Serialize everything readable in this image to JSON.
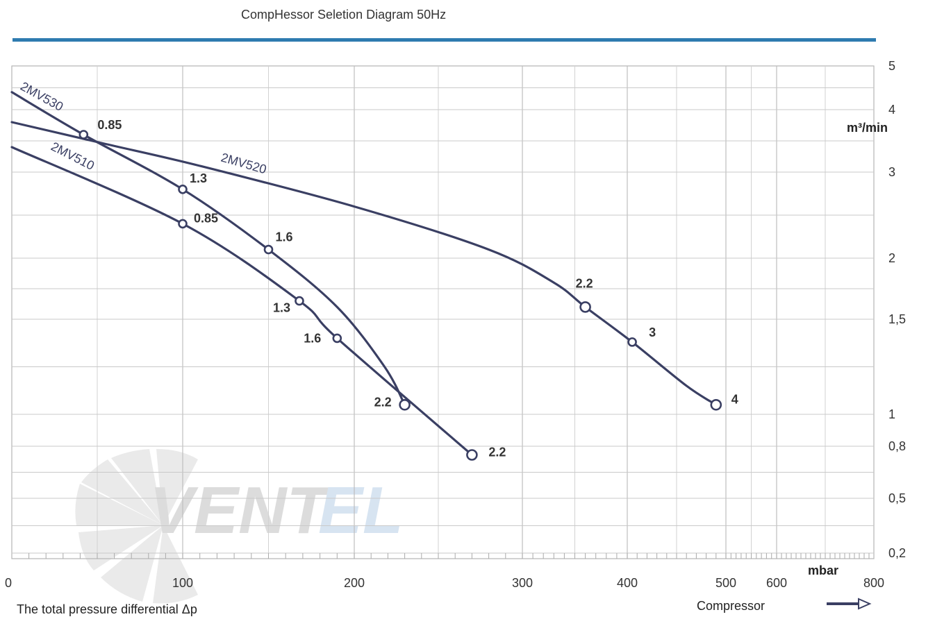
{
  "chart_data": {
    "type": "line",
    "title": "CompHessor Seletion Diagram 50Hz",
    "xlabel": "The total pressure differential Δp",
    "x_unit": "mbar",
    "y_unit": "m³/min",
    "footer_label": "Compressor",
    "xlim": [
      0,
      800
    ],
    "ylim": [
      0.15,
      5
    ],
    "x_tick_labels": [
      "0",
      "100",
      "200",
      "300",
      "400",
      "500",
      "600",
      "800"
    ],
    "x_tick_values": [
      0,
      100,
      200,
      300,
      400,
      500,
      600,
      800
    ],
    "y_tick_labels": [
      "5",
      "4",
      "3",
      "2",
      "1,5",
      "1",
      "0,8",
      "0,5",
      "0,2"
    ],
    "y_tick_values": [
      5,
      4,
      3,
      2,
      1.5,
      1,
      0.8,
      0.5,
      0.2
    ],
    "line_color": "#3a3f63",
    "series": [
      {
        "name": "2MV530",
        "x": [
          0,
          42,
          100,
          150,
          190,
          218,
          230
        ],
        "y": [
          4.4,
          3.6,
          2.8,
          2.1,
          1.6,
          1.25,
          1.05
        ],
        "points": [
          {
            "x": 42,
            "y": 3.6,
            "label": "0.85"
          },
          {
            "x": 100,
            "y": 2.8,
            "label": "1.3"
          },
          {
            "x": 150,
            "y": 2.1,
            "label": "1.6"
          },
          {
            "x": 230,
            "y": 1.05,
            "label": "2.2"
          }
        ]
      },
      {
        "name": "2MV520",
        "x": [
          0,
          55,
          110,
          200,
          280,
          330,
          360,
          405,
          460,
          490
        ],
        "y": [
          3.8,
          3.45,
          3.1,
          2.6,
          2.1,
          1.8,
          1.6,
          1.38,
          1.15,
          1.05
        ],
        "points": [
          {
            "x": 360,
            "y": 1.6,
            "label": "2.2"
          },
          {
            "x": 405,
            "y": 1.38,
            "label": "3"
          },
          {
            "x": 490,
            "y": 1.05,
            "label": "4"
          }
        ]
      },
      {
        "name": "2MV510",
        "x": [
          0,
          100,
          168,
          190,
          270
        ],
        "y": [
          3.4,
          2.4,
          1.65,
          1.4,
          0.75
        ],
        "points": [
          {
            "x": 100,
            "y": 2.4,
            "label": "0.85"
          },
          {
            "x": 168,
            "y": 1.65,
            "label": "1.3"
          },
          {
            "x": 190,
            "y": 1.4,
            "label": "1.6"
          },
          {
            "x": 270,
            "y": 0.75,
            "label": "2.2"
          }
        ]
      }
    ]
  },
  "watermark": {
    "text_a": "VENT",
    "text_b": "EL",
    "color_a": "#c8c8c8",
    "color_b": "#c4d6ea"
  },
  "header_bar_color": "#2e7bb0"
}
